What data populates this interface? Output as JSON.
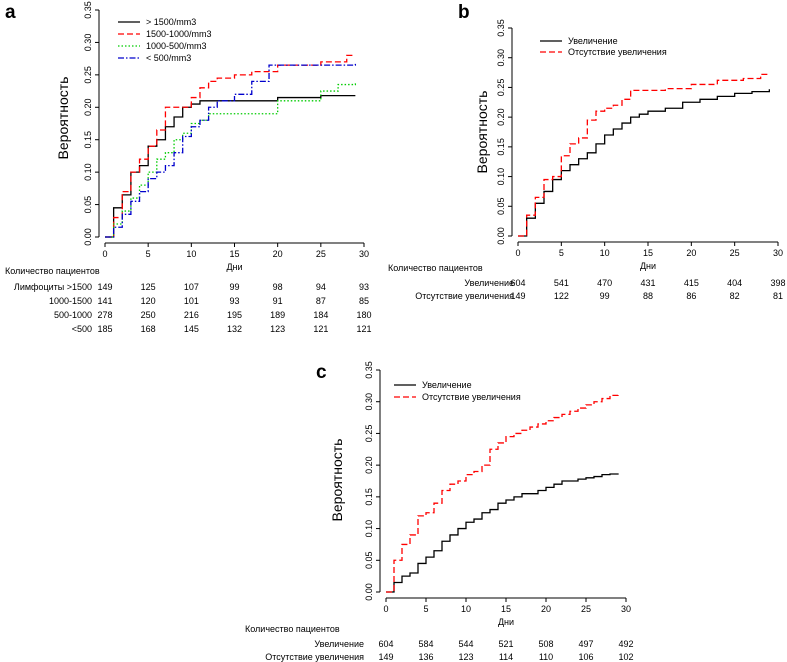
{
  "chart_data": [
    {
      "panel": "a",
      "type": "line",
      "step": true,
      "xlabel": "Дни",
      "ylabel": "Вероятность",
      "xticks": [
        0,
        5,
        10,
        15,
        20,
        25,
        30
      ],
      "yticks": [
        "0.00",
        "0.05",
        "0.10",
        "0.15",
        "0.20",
        "0.25",
        "0.30",
        "0.35"
      ],
      "xlim": [
        0,
        30
      ],
      "ylim": [
        0,
        0.35
      ],
      "legend_position": "top-left",
      "series": [
        {
          "name": "> 1500/mm3",
          "color": "#000000",
          "dash": "solid",
          "x": [
            0,
            1,
            2,
            3,
            4,
            5,
            6,
            7,
            8,
            9,
            10,
            11,
            12,
            13,
            15,
            20,
            25,
            29
          ],
          "y": [
            0,
            0.045,
            0.065,
            0.1,
            0.11,
            0.14,
            0.15,
            0.17,
            0.185,
            0.2,
            0.205,
            0.21,
            0.21,
            0.21,
            0.21,
            0.215,
            0.218,
            0.218
          ]
        },
        {
          "name": "1500-1000/mm3",
          "color": "#ff0000",
          "dash": "dashed",
          "x": [
            0,
            1,
            2,
            3,
            4,
            5,
            6,
            7,
            8,
            9,
            10,
            11,
            12,
            13,
            15,
            17,
            20,
            25,
            28,
            29
          ],
          "y": [
            0,
            0.03,
            0.07,
            0.1,
            0.12,
            0.14,
            0.165,
            0.2,
            0.2,
            0.2,
            0.215,
            0.23,
            0.24,
            0.245,
            0.25,
            0.255,
            0.265,
            0.27,
            0.28,
            0.28
          ]
        },
        {
          "name": "1000-500/mm3",
          "color": "#00cc00",
          "dash": "dotted",
          "x": [
            0,
            1,
            2,
            3,
            4,
            5,
            6,
            7,
            8,
            9,
            10,
            11,
            12,
            13,
            15,
            20,
            25,
            27,
            29
          ],
          "y": [
            0,
            0.02,
            0.04,
            0.06,
            0.08,
            0.1,
            0.12,
            0.13,
            0.15,
            0.16,
            0.175,
            0.18,
            0.19,
            0.19,
            0.19,
            0.21,
            0.225,
            0.235,
            0.24
          ]
        },
        {
          "name": "< 500/mm3",
          "color": "#0000cc",
          "dash": "dashdot",
          "x": [
            0,
            1,
            2,
            3,
            4,
            5,
            6,
            7,
            8,
            9,
            10,
            11,
            12,
            13,
            15,
            17,
            19,
            25,
            29
          ],
          "y": [
            0,
            0.015,
            0.035,
            0.055,
            0.07,
            0.09,
            0.1,
            0.11,
            0.13,
            0.155,
            0.17,
            0.18,
            0.2,
            0.21,
            0.22,
            0.24,
            0.265,
            0.265,
            0.268
          ]
        }
      ],
      "risk_table": {
        "title": "Количество пациентов",
        "rows": [
          {
            "label": "Лимфоциты >1500",
            "values": [
              "149",
              "125",
              "107",
              "99",
              "98",
              "94",
              "93"
            ]
          },
          {
            "label": "1000-1500",
            "values": [
              "141",
              "120",
              "101",
              "93",
              "91",
              "87",
              "85"
            ]
          },
          {
            "label": "500-1000",
            "values": [
              "278",
              "250",
              "216",
              "195",
              "189",
              "184",
              "180"
            ]
          },
          {
            "label": "<500",
            "values": [
              "185",
              "168",
              "145",
              "132",
              "123",
              "121",
              "121"
            ]
          }
        ]
      }
    },
    {
      "panel": "b",
      "type": "line",
      "step": true,
      "xlabel": "Дни",
      "ylabel": "Вероятность",
      "xticks": [
        0,
        5,
        10,
        15,
        20,
        25,
        30
      ],
      "yticks": [
        "0.00",
        "0.05",
        "0.10",
        "0.15",
        "0.20",
        "0.25",
        "0.30",
        "0.35"
      ],
      "xlim": [
        0,
        30
      ],
      "ylim": [
        0,
        0.35
      ],
      "legend_position": "top-left",
      "series": [
        {
          "name": "Увеличение",
          "color": "#000000",
          "dash": "solid",
          "x": [
            0,
            1,
            2,
            3,
            4,
            5,
            6,
            7,
            8,
            9,
            10,
            11,
            12,
            13,
            14,
            15,
            17,
            19,
            21,
            23,
            25,
            27,
            29
          ],
          "y": [
            0,
            0.03,
            0.055,
            0.075,
            0.095,
            0.11,
            0.12,
            0.13,
            0.14,
            0.155,
            0.17,
            0.18,
            0.19,
            0.2,
            0.205,
            0.21,
            0.215,
            0.225,
            0.23,
            0.235,
            0.24,
            0.243,
            0.247
          ]
        },
        {
          "name": "Отсутствие увеличения",
          "color": "#ff0000",
          "dash": "dashed",
          "x": [
            0,
            1,
            2,
            3,
            4,
            5,
            6,
            7,
            8,
            9,
            10,
            11,
            12,
            13,
            17,
            20,
            23,
            26,
            28,
            29
          ],
          "y": [
            0,
            0.035,
            0.065,
            0.095,
            0.1,
            0.135,
            0.155,
            0.165,
            0.195,
            0.21,
            0.215,
            0.22,
            0.23,
            0.245,
            0.248,
            0.255,
            0.262,
            0.265,
            0.272,
            0.272
          ]
        }
      ],
      "risk_table": {
        "title": "Количество пациентов",
        "rows": [
          {
            "label": "Увеличение",
            "values": [
              "604",
              "541",
              "470",
              "431",
              "415",
              "404",
              "398"
            ]
          },
          {
            "label": "Отсутствие увеличения",
            "values": [
              "149",
              "122",
              "99",
              "88",
              "86",
              "82",
              "81"
            ]
          }
        ]
      }
    },
    {
      "panel": "c",
      "type": "line",
      "step": true,
      "xlabel": "Дни",
      "ylabel": "Вероятность",
      "xticks": [
        0,
        5,
        10,
        15,
        20,
        25,
        30
      ],
      "yticks": [
        "0.00",
        "0.05",
        "0.10",
        "0.15",
        "0.20",
        "0.25",
        "0.30",
        "0.35"
      ],
      "xlim": [
        0,
        30
      ],
      "ylim": [
        0,
        0.35
      ],
      "legend_position": "top-left",
      "series": [
        {
          "name": "Увеличение",
          "color": "#000000",
          "dash": "solid",
          "x": [
            0,
            1,
            2,
            3,
            4,
            5,
            6,
            7,
            8,
            9,
            10,
            11,
            12,
            13,
            14,
            15,
            16,
            17,
            18,
            19,
            20,
            21,
            22,
            23,
            24,
            25,
            26,
            27,
            28,
            29
          ],
          "y": [
            0,
            0.015,
            0.025,
            0.03,
            0.045,
            0.055,
            0.065,
            0.08,
            0.09,
            0.1,
            0.11,
            0.115,
            0.125,
            0.13,
            0.14,
            0.145,
            0.15,
            0.155,
            0.155,
            0.16,
            0.165,
            0.17,
            0.175,
            0.175,
            0.178,
            0.18,
            0.182,
            0.185,
            0.186,
            0.187
          ]
        },
        {
          "name": "Отсутствие увеличения",
          "color": "#ff0000",
          "dash": "dashed",
          "x": [
            0,
            1,
            2,
            3,
            4,
            5,
            6,
            7,
            8,
            9,
            10,
            11,
            12,
            13,
            14,
            15,
            16,
            17,
            18,
            19,
            20,
            21,
            22,
            23,
            24,
            25,
            26,
            27,
            28,
            29
          ],
          "y": [
            0,
            0.05,
            0.075,
            0.09,
            0.12,
            0.125,
            0.14,
            0.16,
            0.17,
            0.175,
            0.185,
            0.19,
            0.2,
            0.225,
            0.235,
            0.245,
            0.25,
            0.255,
            0.26,
            0.265,
            0.27,
            0.275,
            0.28,
            0.285,
            0.29,
            0.295,
            0.3,
            0.305,
            0.31,
            0.315
          ]
        }
      ],
      "risk_table": {
        "title": "Количество пациентов",
        "rows": [
          {
            "label": "Увеличение",
            "values": [
              "604",
              "584",
              "544",
              "521",
              "508",
              "497",
              "492"
            ]
          },
          {
            "label": "Отсутствие увеличения",
            "values": [
              "149",
              "136",
              "123",
              "114",
              "110",
              "106",
              "102"
            ]
          }
        ]
      }
    }
  ]
}
